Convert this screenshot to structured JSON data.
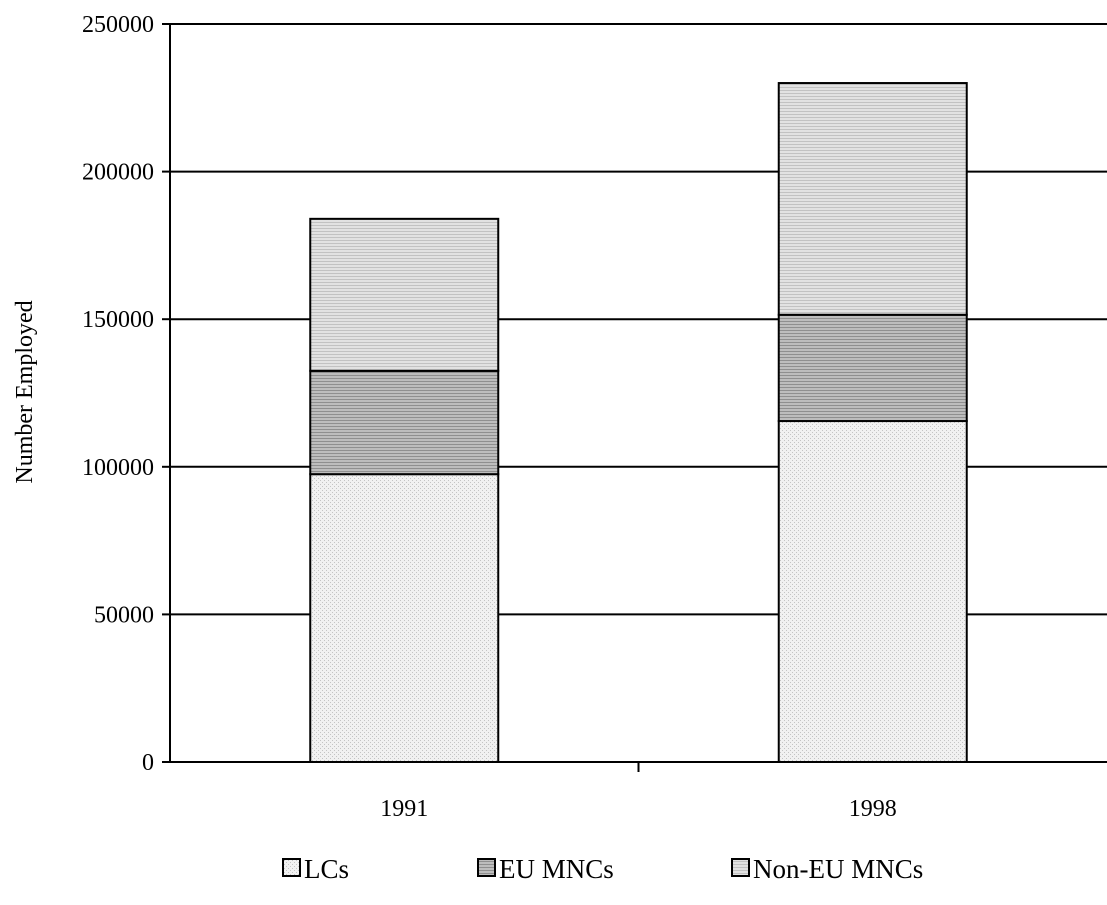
{
  "chart_data": {
    "type": "bar",
    "stacked": true,
    "categories": [
      "1991",
      "1998"
    ],
    "series": [
      {
        "name": "LCs",
        "values": [
          97500,
          115500
        ],
        "pattern": "pat-lcs"
      },
      {
        "name": "EU MNCs",
        "values": [
          35000,
          36000
        ],
        "pattern": "pat-eu"
      },
      {
        "name": "Non-EU MNCs",
        "values": [
          51500,
          78500
        ],
        "pattern": "pat-noneu"
      }
    ],
    "ylabel": "Number Employed",
    "xlabel": "",
    "ylim": [
      0,
      250000
    ],
    "yticks": [
      0,
      50000,
      100000,
      150000,
      200000,
      250000
    ],
    "grid": true,
    "legend_position": "bottom"
  }
}
